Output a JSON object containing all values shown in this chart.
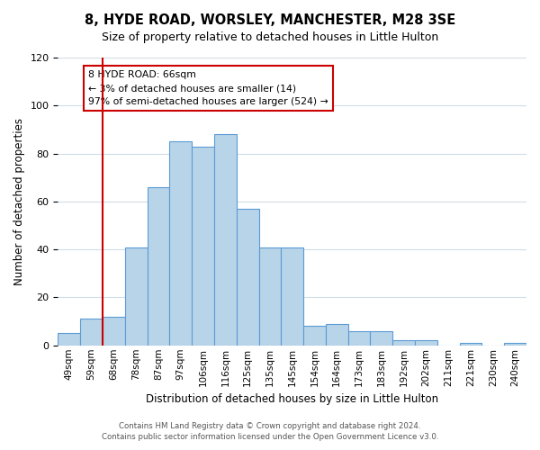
{
  "title": "8, HYDE ROAD, WORSLEY, MANCHESTER, M28 3SE",
  "subtitle": "Size of property relative to detached houses in Little Hulton",
  "xlabel": "Distribution of detached houses by size in Little Hulton",
  "ylabel": "Number of detached properties",
  "bar_labels": [
    "49sqm",
    "59sqm",
    "68sqm",
    "78sqm",
    "87sqm",
    "97sqm",
    "106sqm",
    "116sqm",
    "125sqm",
    "135sqm",
    "145sqm",
    "154sqm",
    "164sqm",
    "173sqm",
    "183sqm",
    "192sqm",
    "202sqm",
    "211sqm",
    "221sqm",
    "230sqm",
    "240sqm"
  ],
  "bar_heights": [
    5,
    11,
    12,
    41,
    66,
    85,
    83,
    88,
    57,
    41,
    41,
    8,
    9,
    6,
    6,
    2,
    2,
    0,
    1,
    0,
    1
  ],
  "bar_color": "#b8d4e8",
  "bar_edge_color": "#5b9bd5",
  "vline_x": 2,
  "vline_color": "#cc0000",
  "ylim": [
    0,
    120
  ],
  "yticks": [
    0,
    20,
    40,
    60,
    80,
    100,
    120
  ],
  "annotation_title": "8 HYDE ROAD: 66sqm",
  "annotation_line1": "← 3% of detached houses are smaller (14)",
  "annotation_line2": "97% of semi-detached houses are larger (524) →",
  "annotation_box_color": "#ffffff",
  "annotation_box_edge": "#cc0000",
  "footer1": "Contains HM Land Registry data © Crown copyright and database right 2024.",
  "footer2": "Contains public sector information licensed under the Open Government Licence v3.0.",
  "background_color": "#ffffff",
  "grid_color": "#d0dce8"
}
